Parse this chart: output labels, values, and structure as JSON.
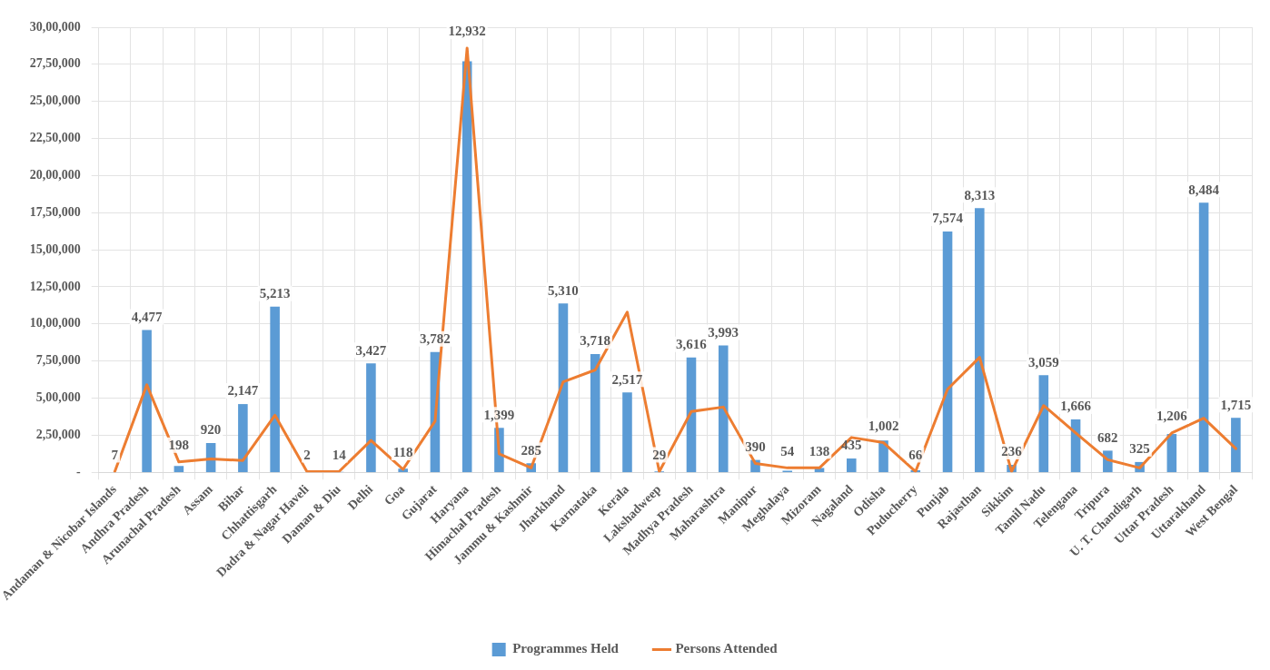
{
  "chart_data": {
    "type": "bar",
    "categories": [
      "Andaman & Nicobar Islands",
      "Andhra Pradesh",
      "Arunachal Pradesh",
      "Assam",
      "Bihar",
      "Chhattisgarh",
      "Dadra & Nagar Haveli",
      "Daman & Diu",
      "Delhi",
      "Goa",
      "Gujarat",
      "Haryana",
      "Himachal Pradesh",
      "Jammu & Kashmir",
      "Jharkhand",
      "Karnataka",
      "Kerala",
      "Lakshadweep",
      "Madhya Pradesh",
      "Maharashtra",
      "Manipur",
      "Meghalaya",
      "Mizoram",
      "Nagaland",
      "Odisha",
      "Puducherry",
      "Punjab",
      "Rajasthan",
      "Sikkim",
      "Tamil Nadu",
      "Telengana",
      "Tripura",
      "U. T. Chandigarh",
      "Uttar Pradesh",
      "Uttarakhand",
      "West Bengal"
    ],
    "series": [
      {
        "name": "Programmes Held",
        "axis": "y2",
        "color": "#5b9bd5",
        "value_labels": [
          "7",
          "4,477",
          "198",
          "920",
          "2,147",
          "5,213",
          "2",
          "14",
          "3,427",
          "118",
          "3,782",
          "12,932",
          "1,399",
          "285",
          "5,310",
          "3,718",
          "2,517",
          "29",
          "3,616",
          "3,993",
          "390",
          "54",
          "138",
          "435",
          "1,002",
          "66",
          "7,574",
          "8,313",
          "236",
          "3,059",
          "1,666",
          "682",
          "325",
          "1,206",
          "8,484",
          "1,715"
        ],
        "values": [
          7,
          4477,
          198,
          920,
          2147,
          5213,
          2,
          14,
          3427,
          118,
          3782,
          12932,
          1399,
          285,
          5310,
          3718,
          2517,
          29,
          3616,
          3993,
          390,
          54,
          138,
          435,
          1002,
          66,
          7574,
          8313,
          236,
          3059,
          1666,
          682,
          325,
          1206,
          8484,
          1715
        ]
      },
      {
        "name": "Persons Attended",
        "type": "line",
        "axis": "y",
        "color": "#ed7d31",
        "values": [
          5000,
          590000,
          70000,
          90000,
          80000,
          385000,
          5000,
          5000,
          215000,
          20000,
          345000,
          2860000,
          125000,
          30000,
          610000,
          690000,
          1080000,
          5000,
          410000,
          440000,
          60000,
          30000,
          30000,
          235000,
          200000,
          5000,
          560000,
          775000,
          5000,
          450000,
          265000,
          85000,
          30000,
          265000,
          365000,
          160000
        ]
      }
    ],
    "ylim": [
      0,
      3000000
    ],
    "yticks": [
      {
        "value": 0,
        "label": "-"
      },
      {
        "value": 250000,
        "label": "2,50,000"
      },
      {
        "value": 500000,
        "label": "5,00,000"
      },
      {
        "value": 750000,
        "label": "7,50,000"
      },
      {
        "value": 1000000,
        "label": "10,00,000"
      },
      {
        "value": 1250000,
        "label": "12,50,000"
      },
      {
        "value": 1500000,
        "label": "15,00,000"
      },
      {
        "value": 1750000,
        "label": "17,50,000"
      },
      {
        "value": 2000000,
        "label": "20,00,000"
      },
      {
        "value": 2250000,
        "label": "22,50,000"
      },
      {
        "value": 2500000,
        "label": "25,00,000"
      },
      {
        "value": 2750000,
        "label": "27,50,000"
      },
      {
        "value": 3000000,
        "label": "30,00,000"
      }
    ],
    "y2lim": [
      0,
      14000
    ],
    "grid": true,
    "legend": "bottom",
    "marker": "none",
    "line_style": "solid"
  }
}
